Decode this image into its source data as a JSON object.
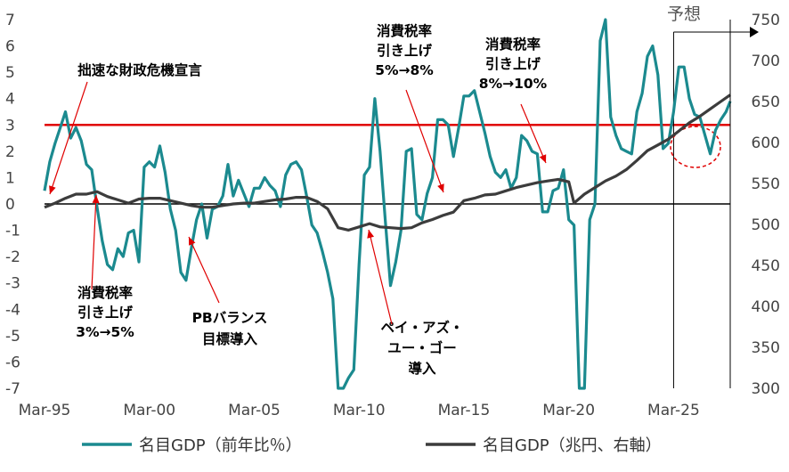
{
  "chart_data": {
    "type": "line",
    "forecast_label": "予想",
    "x_ticks": [
      "Mar-95",
      "Mar-00",
      "Mar-05",
      "Mar-10",
      "Mar-15",
      "Mar-20",
      "Mar-25"
    ],
    "x_range": [
      1995.0,
      2027.7
    ],
    "forecast_start": 2025.0,
    "y_left": {
      "range": [
        -7,
        7
      ],
      "ticks": [
        -7,
        -6,
        -5,
        -4,
        -3,
        -2,
        -1,
        0,
        1,
        2,
        3,
        4,
        5,
        6,
        7
      ]
    },
    "y_right": {
      "range": [
        300,
        750
      ],
      "ticks": [
        300,
        350,
        400,
        450,
        500,
        550,
        600,
        650,
        700,
        750
      ]
    },
    "reference_lines": [
      {
        "axis": "left",
        "y": 0,
        "color": "#000000"
      },
      {
        "axis": "left",
        "y": 3,
        "color": "#e00000"
      }
    ],
    "series": [
      {
        "name": "名目GDP（前年比％）",
        "axis": "left",
        "color": "#1b8a8f",
        "points": [
          [
            1995.0,
            0.5
          ],
          [
            1995.25,
            1.6
          ],
          [
            1995.5,
            2.3
          ],
          [
            1995.75,
            2.9
          ],
          [
            1996.0,
            3.5
          ],
          [
            1996.25,
            2.5
          ],
          [
            1996.5,
            2.9
          ],
          [
            1996.75,
            2.4
          ],
          [
            1997.0,
            1.5
          ],
          [
            1997.25,
            1.3
          ],
          [
            1997.5,
            -0.1
          ],
          [
            1997.75,
            -1.4
          ],
          [
            1998.0,
            -2.3
          ],
          [
            1998.25,
            -2.5
          ],
          [
            1998.5,
            -1.7
          ],
          [
            1998.75,
            -2.0
          ],
          [
            1999.0,
            -1.1
          ],
          [
            1999.25,
            -1.0
          ],
          [
            1999.5,
            -2.2
          ],
          [
            1999.75,
            1.4
          ],
          [
            2000.0,
            1.6
          ],
          [
            2000.25,
            1.4
          ],
          [
            2000.5,
            2.2
          ],
          [
            2000.75,
            1.2
          ],
          [
            2001.0,
            -0.2
          ],
          [
            2001.25,
            -1.0
          ],
          [
            2001.5,
            -2.6
          ],
          [
            2001.75,
            -2.9
          ],
          [
            2002.0,
            -1.7
          ],
          [
            2002.25,
            -0.6
          ],
          [
            2002.5,
            0.0
          ],
          [
            2002.75,
            -1.3
          ],
          [
            2003.0,
            -0.2
          ],
          [
            2003.25,
            -0.1
          ],
          [
            2003.5,
            0.3
          ],
          [
            2003.75,
            1.5
          ],
          [
            2004.0,
            0.3
          ],
          [
            2004.25,
            0.9
          ],
          [
            2004.5,
            0.4
          ],
          [
            2004.75,
            -0.1
          ],
          [
            2005.0,
            0.6
          ],
          [
            2005.25,
            0.6
          ],
          [
            2005.5,
            1.0
          ],
          [
            2005.75,
            0.7
          ],
          [
            2006.0,
            0.5
          ],
          [
            2006.25,
            -0.1
          ],
          [
            2006.5,
            1.1
          ],
          [
            2006.75,
            1.5
          ],
          [
            2007.0,
            1.6
          ],
          [
            2007.25,
            1.3
          ],
          [
            2007.5,
            0.3
          ],
          [
            2007.75,
            -0.8
          ],
          [
            2008.0,
            -1.1
          ],
          [
            2008.25,
            -1.8
          ],
          [
            2008.5,
            -2.6
          ],
          [
            2008.75,
            -3.6
          ],
          [
            2009.0,
            -7.0
          ],
          [
            2009.25,
            -7.0
          ],
          [
            2009.5,
            -6.6
          ],
          [
            2009.75,
            -6.3
          ],
          [
            2010.0,
            -2.3
          ],
          [
            2010.25,
            1.1
          ],
          [
            2010.5,
            1.4
          ],
          [
            2010.75,
            4.0
          ],
          [
            2011.0,
            2.0
          ],
          [
            2011.25,
            -0.6
          ],
          [
            2011.5,
            -3.1
          ],
          [
            2011.75,
            -2.2
          ],
          [
            2012.0,
            -1.0
          ],
          [
            2012.25,
            2.0
          ],
          [
            2012.5,
            2.1
          ],
          [
            2012.75,
            -0.4
          ],
          [
            2013.0,
            -0.6
          ],
          [
            2013.25,
            0.4
          ],
          [
            2013.5,
            1.0
          ],
          [
            2013.75,
            3.2
          ],
          [
            2014.0,
            3.2
          ],
          [
            2014.25,
            3.0
          ],
          [
            2014.5,
            1.8
          ],
          [
            2014.75,
            2.9
          ],
          [
            2015.0,
            4.1
          ],
          [
            2015.25,
            4.1
          ],
          [
            2015.5,
            4.3
          ],
          [
            2015.75,
            3.5
          ],
          [
            2016.0,
            2.7
          ],
          [
            2016.25,
            1.8
          ],
          [
            2016.5,
            1.2
          ],
          [
            2016.75,
            1.0
          ],
          [
            2017.0,
            1.3
          ],
          [
            2017.25,
            0.6
          ],
          [
            2017.5,
            1.0
          ],
          [
            2017.75,
            2.6
          ],
          [
            2018.0,
            2.4
          ],
          [
            2018.25,
            2.0
          ],
          [
            2018.5,
            1.9
          ],
          [
            2018.75,
            -0.3
          ],
          [
            2019.0,
            -0.3
          ],
          [
            2019.25,
            0.5
          ],
          [
            2019.5,
            0.6
          ],
          [
            2019.75,
            1.3
          ],
          [
            2020.0,
            -0.6
          ],
          [
            2020.25,
            -0.8
          ],
          [
            2020.5,
            -7.0
          ],
          [
            2020.75,
            -7.0
          ],
          [
            2021.0,
            -0.6
          ],
          [
            2021.25,
            0.0
          ],
          [
            2021.5,
            6.2
          ],
          [
            2021.75,
            7.0
          ],
          [
            2022.0,
            3.3
          ],
          [
            2022.25,
            2.6
          ],
          [
            2022.5,
            2.1
          ],
          [
            2022.75,
            2.0
          ],
          [
            2023.0,
            1.9
          ],
          [
            2023.25,
            3.5
          ],
          [
            2023.5,
            4.2
          ],
          [
            2023.75,
            5.6
          ],
          [
            2024.0,
            6.0
          ],
          [
            2024.25,
            4.9
          ],
          [
            2024.5,
            2.1
          ],
          [
            2024.75,
            2.3
          ],
          [
            2025.0,
            3.5
          ],
          [
            2025.25,
            5.2
          ],
          [
            2025.5,
            5.2
          ],
          [
            2025.75,
            4.0
          ],
          [
            2026.0,
            3.4
          ],
          [
            2026.25,
            3.3
          ],
          [
            2026.5,
            2.6
          ],
          [
            2026.75,
            1.9
          ],
          [
            2027.0,
            2.8
          ],
          [
            2027.25,
            3.2
          ],
          [
            2027.5,
            3.5
          ],
          [
            2027.7,
            3.9
          ]
        ]
      },
      {
        "name": "名目GDP（兆円、右軸）",
        "axis": "right",
        "color": "#3c3c3c",
        "points": [
          [
            1995.0,
            521
          ],
          [
            1995.5,
            526
          ],
          [
            1996.0,
            532
          ],
          [
            1996.5,
            537
          ],
          [
            1997.0,
            537
          ],
          [
            1997.5,
            540
          ],
          [
            1998.0,
            534
          ],
          [
            1998.5,
            530
          ],
          [
            1999.0,
            526
          ],
          [
            1999.5,
            531
          ],
          [
            2000.0,
            532
          ],
          [
            2000.5,
            532
          ],
          [
            2001.0,
            529
          ],
          [
            2001.5,
            526
          ],
          [
            2002.0,
            523
          ],
          [
            2002.5,
            521
          ],
          [
            2003.0,
            521
          ],
          [
            2003.5,
            523
          ],
          [
            2004.0,
            525
          ],
          [
            2004.5,
            526
          ],
          [
            2005.0,
            526
          ],
          [
            2005.5,
            528
          ],
          [
            2006.0,
            530
          ],
          [
            2006.5,
            531
          ],
          [
            2007.0,
            533
          ],
          [
            2007.5,
            533
          ],
          [
            2008.0,
            528
          ],
          [
            2008.5,
            519
          ],
          [
            2009.0,
            496
          ],
          [
            2009.5,
            493
          ],
          [
            2010.0,
            497
          ],
          [
            2010.5,
            501
          ],
          [
            2011.0,
            497
          ],
          [
            2011.5,
            496
          ],
          [
            2012.0,
            495
          ],
          [
            2012.5,
            496
          ],
          [
            2013.0,
            502
          ],
          [
            2013.5,
            506
          ],
          [
            2014.0,
            511
          ],
          [
            2014.5,
            515
          ],
          [
            2015.0,
            529
          ],
          [
            2015.5,
            532
          ],
          [
            2016.0,
            536
          ],
          [
            2016.5,
            537
          ],
          [
            2017.0,
            541
          ],
          [
            2017.5,
            545
          ],
          [
            2018.0,
            548
          ],
          [
            2018.5,
            551
          ],
          [
            2019.0,
            553
          ],
          [
            2019.5,
            555
          ],
          [
            2020.0,
            552
          ],
          [
            2020.25,
            526
          ],
          [
            2020.75,
            537
          ],
          [
            2021.25,
            545
          ],
          [
            2021.75,
            553
          ],
          [
            2022.25,
            559
          ],
          [
            2022.75,
            567
          ],
          [
            2023.25,
            578
          ],
          [
            2023.75,
            590
          ],
          [
            2024.25,
            597
          ],
          [
            2024.75,
            604
          ],
          [
            2025.25,
            614
          ],
          [
            2025.75,
            624
          ],
          [
            2026.25,
            632
          ],
          [
            2026.75,
            641
          ],
          [
            2027.25,
            650
          ],
          [
            2027.7,
            658
          ]
        ]
      }
    ],
    "annotations": [
      {
        "lines": [
          "拙速な財政危機宣言"
        ]
      },
      {
        "lines": [
          "消費税率",
          "引き上げ",
          "3%→5%"
        ]
      },
      {
        "lines": [
          "PBバランス",
          "目標導入"
        ]
      },
      {
        "lines": [
          "ペイ・アズ・",
          "ユー・ゴー",
          "導入"
        ]
      },
      {
        "lines": [
          "消費税率",
          "引き上げ",
          "5%→8%"
        ]
      },
      {
        "lines": [
          "消費税率",
          "引き上げ",
          "8%→10%"
        ]
      }
    ]
  }
}
